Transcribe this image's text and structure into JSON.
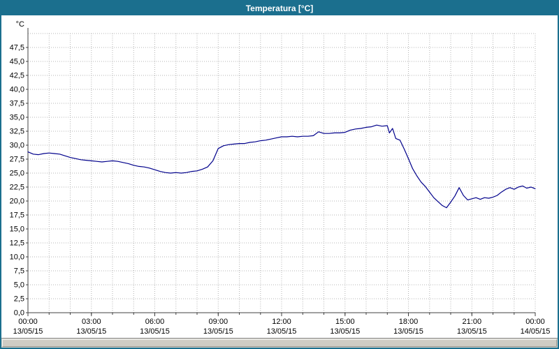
{
  "window": {
    "title": "Temperatura [°C]"
  },
  "chart_data": {
    "type": "line",
    "title": "Temperatura [°C]",
    "xlabel": "",
    "ylabel": "°C",
    "ylim": [
      0,
      50
    ],
    "xlim": [
      0,
      24
    ],
    "ytick_step": 2.5,
    "grid": "dotted",
    "legend": "none",
    "colors": {
      "line": "#00008b",
      "grid": "#b4b4b4",
      "axis": "#404040",
      "title_bg": "#1b6f8e"
    },
    "ytick_values": [
      47.5,
      45,
      42.5,
      40,
      37.5,
      35,
      32.5,
      30,
      27.5,
      25,
      22.5,
      20,
      17.5,
      15,
      12.5,
      10,
      7.5,
      5,
      2.5,
      0
    ],
    "ytick_labels": [
      "47,5",
      "45,0",
      "42,5",
      "40,0",
      "37,5",
      "35,0",
      "32,5",
      "30,0",
      "27,5",
      "25,0",
      "22,5",
      "20,0",
      "17,5",
      "15,0",
      "12,5",
      "10,0",
      "7,5",
      "5,0",
      "2,5",
      "0,0"
    ],
    "xticks": [
      {
        "hour": 0,
        "time": "00:00",
        "date": "13/05/15"
      },
      {
        "hour": 3,
        "time": "03:00",
        "date": "13/05/15"
      },
      {
        "hour": 6,
        "time": "06:00",
        "date": "13/05/15"
      },
      {
        "hour": 9,
        "time": "09:00",
        "date": "13/05/15"
      },
      {
        "hour": 12,
        "time": "12:00",
        "date": "13/05/15"
      },
      {
        "hour": 15,
        "time": "15:00",
        "date": "13/05/15"
      },
      {
        "hour": 18,
        "time": "18:00",
        "date": "13/05/15"
      },
      {
        "hour": 21,
        "time": "21:00",
        "date": "13/05/15"
      },
      {
        "hour": 24,
        "time": "00:00",
        "date": "14/05/15"
      }
    ],
    "series": [
      {
        "name": "Temperatura",
        "color": "#00008b",
        "points": [
          [
            0,
            28.8
          ],
          [
            0.25,
            28.4
          ],
          [
            0.5,
            28.3
          ],
          [
            0.75,
            28.5
          ],
          [
            1,
            28.6
          ],
          [
            1.25,
            28.5
          ],
          [
            1.5,
            28.4
          ],
          [
            1.75,
            28.1
          ],
          [
            2,
            27.8
          ],
          [
            2.25,
            27.6
          ],
          [
            2.5,
            27.4
          ],
          [
            2.75,
            27.3
          ],
          [
            3,
            27.2
          ],
          [
            3.25,
            27.1
          ],
          [
            3.5,
            27.0
          ],
          [
            3.75,
            27.1
          ],
          [
            4,
            27.2
          ],
          [
            4.25,
            27.1
          ],
          [
            4.5,
            26.9
          ],
          [
            4.75,
            26.7
          ],
          [
            5,
            26.4
          ],
          [
            5.25,
            26.2
          ],
          [
            5.5,
            26.1
          ],
          [
            5.75,
            25.9
          ],
          [
            6,
            25.6
          ],
          [
            6.25,
            25.3
          ],
          [
            6.5,
            25.1
          ],
          [
            6.75,
            25.0
          ],
          [
            7,
            25.1
          ],
          [
            7.25,
            25.0
          ],
          [
            7.5,
            25.1
          ],
          [
            7.75,
            25.3
          ],
          [
            8,
            25.4
          ],
          [
            8.25,
            25.7
          ],
          [
            8.5,
            26.1
          ],
          [
            8.75,
            27.2
          ],
          [
            9,
            29.4
          ],
          [
            9.25,
            29.9
          ],
          [
            9.5,
            30.1
          ],
          [
            9.75,
            30.2
          ],
          [
            10,
            30.3
          ],
          [
            10.25,
            30.3
          ],
          [
            10.5,
            30.5
          ],
          [
            10.75,
            30.6
          ],
          [
            11,
            30.8
          ],
          [
            11.25,
            30.9
          ],
          [
            11.5,
            31.1
          ],
          [
            11.75,
            31.3
          ],
          [
            12,
            31.5
          ],
          [
            12.25,
            31.5
          ],
          [
            12.5,
            31.6
          ],
          [
            12.75,
            31.5
          ],
          [
            13,
            31.6
          ],
          [
            13.25,
            31.6
          ],
          [
            13.5,
            31.7
          ],
          [
            13.75,
            32.4
          ],
          [
            14,
            32.1
          ],
          [
            14.25,
            32.1
          ],
          [
            14.5,
            32.2
          ],
          [
            14.75,
            32.2
          ],
          [
            15,
            32.3
          ],
          [
            15.25,
            32.7
          ],
          [
            15.5,
            32.9
          ],
          [
            15.75,
            33.0
          ],
          [
            16,
            33.2
          ],
          [
            16.25,
            33.3
          ],
          [
            16.5,
            33.6
          ],
          [
            16.75,
            33.4
          ],
          [
            17,
            33.5
          ],
          [
            17.1,
            32.2
          ],
          [
            17.25,
            33.0
          ],
          [
            17.4,
            31.2
          ],
          [
            17.6,
            30.9
          ],
          [
            17.8,
            29.3
          ],
          [
            18,
            27.6
          ],
          [
            18.2,
            25.8
          ],
          [
            18.4,
            24.5
          ],
          [
            18.6,
            23.4
          ],
          [
            18.8,
            22.6
          ],
          [
            19,
            21.6
          ],
          [
            19.2,
            20.6
          ],
          [
            19.4,
            19.9
          ],
          [
            19.6,
            19.2
          ],
          [
            19.8,
            18.8
          ],
          [
            20,
            19.8
          ],
          [
            20.2,
            20.9
          ],
          [
            20.4,
            22.4
          ],
          [
            20.6,
            21.0
          ],
          [
            20.8,
            20.2
          ],
          [
            21,
            20.4
          ],
          [
            21.2,
            20.6
          ],
          [
            21.4,
            20.3
          ],
          [
            21.6,
            20.6
          ],
          [
            21.8,
            20.5
          ],
          [
            22,
            20.7
          ],
          [
            22.2,
            21.0
          ],
          [
            22.4,
            21.6
          ],
          [
            22.6,
            22.1
          ],
          [
            22.8,
            22.4
          ],
          [
            23,
            22.1
          ],
          [
            23.2,
            22.5
          ],
          [
            23.4,
            22.7
          ],
          [
            23.6,
            22.3
          ],
          [
            23.8,
            22.5
          ],
          [
            24,
            22.2
          ]
        ]
      }
    ]
  }
}
